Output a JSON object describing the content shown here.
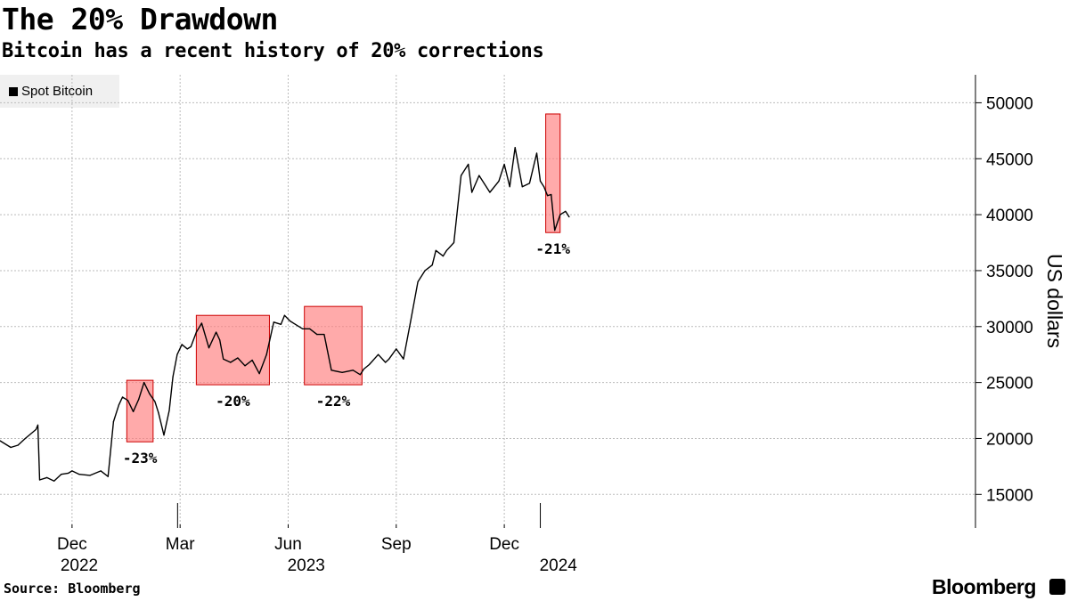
{
  "chart_data": {
    "type": "line",
    "title": "The 20% Drawdown",
    "subtitle": "Bitcoin has a recent history of 20% corrections",
    "legend": [
      "Spot Bitcoin"
    ],
    "legend_position": "top-left",
    "ylabel": "US dollars",
    "ylim": [
      12000,
      52500
    ],
    "yticks": [
      15000,
      20000,
      25000,
      30000,
      35000,
      40000,
      45000,
      50000
    ],
    "xlim": [
      0,
      27.08
    ],
    "x_unit": "months since 2022-10-01",
    "xticks": [
      {
        "x": 2,
        "label": "Dec"
      },
      {
        "x": 5,
        "label": "Mar"
      },
      {
        "x": 8,
        "label": "Jun"
      },
      {
        "x": 11,
        "label": "Sep"
      },
      {
        "x": 14,
        "label": "Dec"
      }
    ],
    "year_labels": [
      {
        "x": 2.2,
        "label": "2022"
      },
      {
        "x": 8.5,
        "label": "2023"
      },
      {
        "x": 15.5,
        "label": "2024"
      }
    ],
    "year_dividers": [
      4.93,
      15.0
    ],
    "series": [
      {
        "name": "Spot Bitcoin",
        "x": [
          0,
          0.3,
          0.5,
          0.7,
          1.0,
          1.05,
          1.1,
          1.3,
          1.5,
          1.7,
          1.9,
          2.0,
          2.2,
          2.5,
          2.8,
          3.0,
          3.15,
          3.3,
          3.4,
          3.55,
          3.7,
          3.85,
          4.0,
          4.15,
          4.3,
          4.4,
          4.55,
          4.7,
          4.8,
          4.92,
          5.05,
          5.2,
          5.3,
          5.45,
          5.6,
          5.8,
          6.0,
          6.1,
          6.2,
          6.4,
          6.6,
          6.8,
          7.0,
          7.2,
          7.4,
          7.6,
          7.8,
          7.9,
          8.05,
          8.2,
          8.4,
          8.6,
          8.8,
          9.0,
          9.2,
          9.5,
          9.8,
          10.0,
          10.1,
          10.25,
          10.5,
          10.7,
          10.8,
          11.0,
          11.2,
          11.4,
          11.6,
          11.8,
          12.0,
          12.1,
          12.3,
          12.4,
          12.6,
          12.8,
          13.0,
          13.1,
          13.3,
          13.6,
          13.85,
          14.0,
          14.15,
          14.3,
          14.5,
          14.7,
          14.9,
          15.0,
          15.1,
          15.2,
          15.3,
          15.4,
          15.55,
          15.7,
          15.8
        ],
        "y": [
          19800,
          19200,
          19400,
          20000,
          20800,
          21200,
          16300,
          16500,
          16200,
          16800,
          16900,
          17100,
          16800,
          16700,
          17100,
          16600,
          21500,
          23000,
          23700,
          23400,
          22400,
          23500,
          25000,
          24000,
          23300,
          22300,
          20300,
          22500,
          25500,
          27500,
          28400,
          28000,
          28200,
          29500,
          30300,
          28100,
          29500,
          28800,
          27100,
          26800,
          27200,
          26500,
          27000,
          25800,
          27500,
          30400,
          30200,
          31000,
          30500,
          30200,
          29800,
          29800,
          29300,
          29300,
          26100,
          25900,
          26100,
          25700,
          26200,
          26600,
          27500,
          26800,
          27100,
          28000,
          27100,
          30500,
          34000,
          35000,
          35500,
          36800,
          36300,
          36800,
          37500,
          43500,
          44500,
          42000,
          43500,
          42000,
          43000,
          44500,
          42500,
          46000,
          42500,
          42800,
          45500,
          43000,
          42500,
          41700,
          41800,
          38600,
          40000,
          40300,
          39800
        ]
      }
    ],
    "annotations": [
      {
        "label": "-23%",
        "x0": 3.52,
        "x1": 4.25,
        "y0": 19700,
        "y1": 25200
      },
      {
        "label": "-20%",
        "x0": 5.45,
        "x1": 7.48,
        "y0": 24800,
        "y1": 31000
      },
      {
        "label": "-22%",
        "x0": 8.45,
        "x1": 10.05,
        "y0": 24800,
        "y1": 31800
      },
      {
        "label": "-21%",
        "x0": 15.15,
        "x1": 15.55,
        "y0": 38400,
        "y1": 49000
      }
    ]
  },
  "footer": {
    "source": "Source: Bloomberg",
    "brand": "Bloomberg"
  }
}
